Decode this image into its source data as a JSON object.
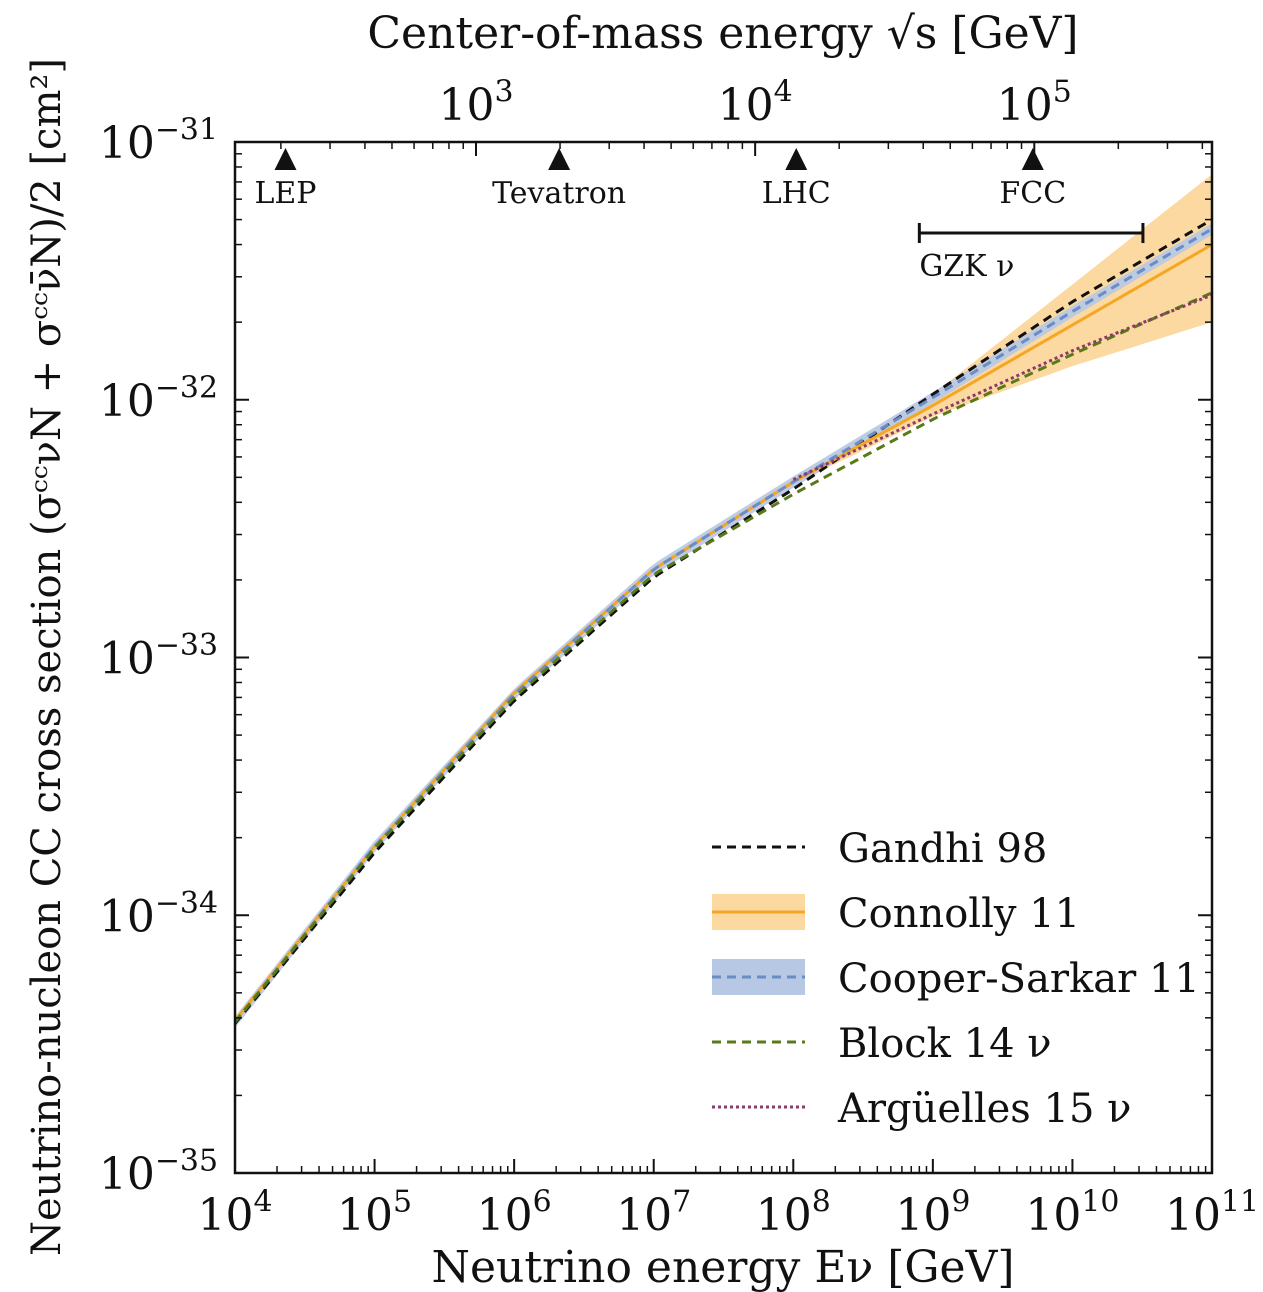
{
  "chart_data": {
    "type": "line",
    "xlabel": "Neutrino energy Eν [GeV]",
    "x2label": "Center-of-mass energy √s [GeV]",
    "ylabel": "Neutrino-nucleon CC cross section (σᶜᶜνN + σᶜᶜν̄N)/2 [cm²]",
    "xscale": "log",
    "yscale": "log",
    "xlim": [
      10000,
      100000000000
    ],
    "ylim": [
      1e-35,
      1e-31
    ],
    "x_ticks": [
      "10^4",
      "10^5",
      "10^6",
      "10^7",
      "10^8",
      "10^9",
      "10^10",
      "10^11"
    ],
    "x2_ticks": [
      "10^3",
      "10^4",
      "10^5"
    ],
    "y_ticks": [
      "10^-35",
      "10^-34",
      "10^-33",
      "10^-32",
      "10^-31"
    ],
    "legend_position": "lower-right",
    "series": [
      {
        "name": "Gandhi 98",
        "style": "dashed",
        "color": "#111111",
        "x": [
          10000,
          100000,
          1000000,
          10000000,
          100000000,
          1000000000,
          10000000000,
          100000000000
        ],
        "y": [
          3.8e-35,
          1.75e-34,
          6.8e-34,
          2.05e-33,
          4.5e-33,
          1.05e-32,
          2.4e-32,
          5e-32
        ]
      },
      {
        "name": "Connolly 11",
        "style": "solid",
        "color": "#f5a623",
        "band_color": "#fcd9a0",
        "x": [
          10000,
          100000,
          1000000,
          10000000,
          100000000,
          1000000000,
          10000000000,
          100000000000
        ],
        "y": [
          3.9e-35,
          1.85e-34,
          7.3e-34,
          2.2e-33,
          4.8e-33,
          9.5e-33,
          1.95e-32,
          4e-32
        ],
        "band_lower": [
          3.9e-35,
          1.85e-34,
          7.2e-34,
          2.15e-33,
          4.7e-33,
          8.6e-33,
          1.35e-32,
          2e-32
        ],
        "band_upper": [
          3.9e-35,
          1.85e-34,
          7.4e-34,
          2.25e-33,
          4.9e-33,
          1.05e-32,
          2.8e-32,
          7.5e-32
        ]
      },
      {
        "name": "Cooper-Sarkar 11",
        "style": "dashed",
        "color": "#6a8cc7",
        "band_color": "#b7c8e4",
        "x": [
          10000,
          100000,
          1000000,
          10000000,
          100000000,
          1000000000,
          10000000000,
          100000000000
        ],
        "y": [
          3.85e-35,
          1.85e-34,
          7.2e-34,
          2.2e-33,
          4.8e-33,
          1.02e-32,
          2.2e-32,
          4.6e-32
        ]
      },
      {
        "name": "Block 14 ν",
        "style": "dashed",
        "color": "#5a7a1a",
        "x": [
          10000,
          100000,
          1000000,
          10000000,
          100000000,
          1000000000,
          10000000000,
          100000000000
        ],
        "y": [
          3.85e-35,
          1.82e-34,
          7e-34,
          2.1e-33,
          4.3e-33,
          8.4e-33,
          1.5e-32,
          2.6e-32
        ]
      },
      {
        "name": "Argüelles 15 ν",
        "style": "dotted",
        "color": "#8b3a6b",
        "x": [
          100000000,
          1000000000,
          10000000000,
          100000000000
        ],
        "y": [
          4.9e-33,
          8.8e-33,
          1.55e-32,
          2.55e-32
        ]
      }
    ],
    "markers": [
      {
        "label": "LEP",
        "x": 23000
      },
      {
        "label": "Tevatron",
        "x": 2100000
      },
      {
        "label": "LHC",
        "x": 105000000
      },
      {
        "label": "FCC",
        "x": 5200000000
      }
    ],
    "range_bar": {
      "label": "GZK ν",
      "x_start": 800000000,
      "x_end": 32000000000
    }
  }
}
